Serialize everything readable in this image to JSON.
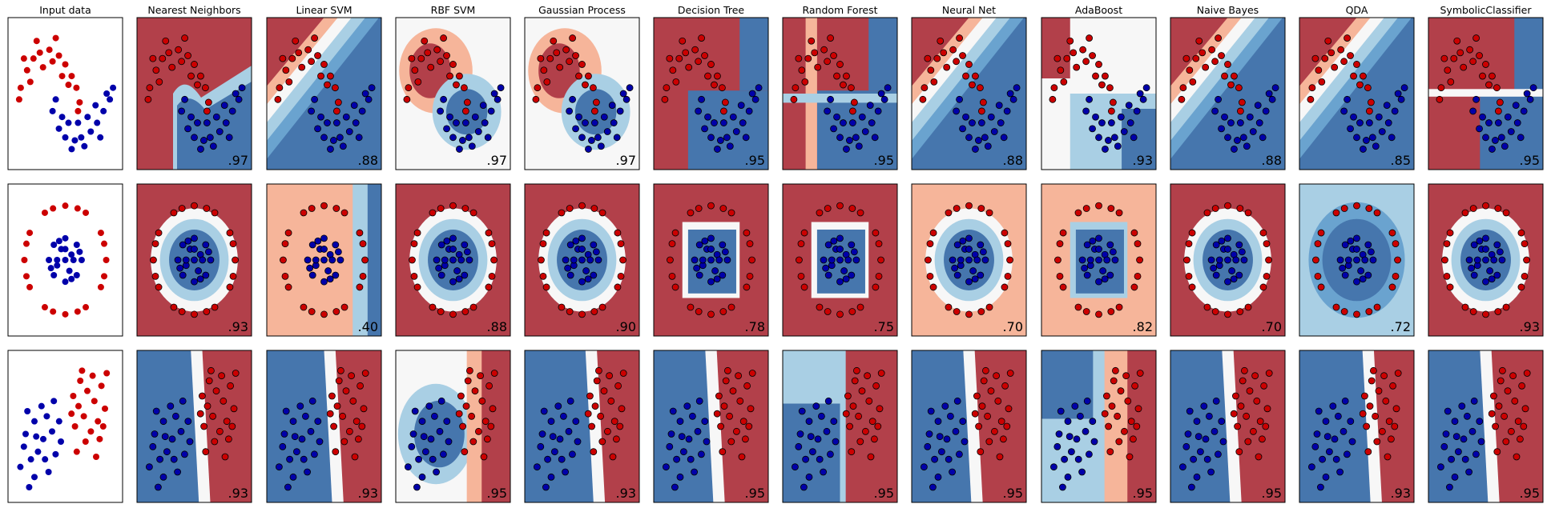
{
  "figure": {
    "columns": [
      "Input data",
      "Nearest Neighbors",
      "Linear SVM",
      "RBF SVM",
      "Gaussian Process",
      "Decision Tree",
      "Random Forest",
      "Neural Net",
      "AdaBoost",
      "Naive Bayes",
      "QDA",
      "SymbolicClassifier"
    ],
    "colors": {
      "class_0": "#cc0000",
      "class_1": "#0000aa",
      "region_red": "#b2404a",
      "region_blue": "#4676ad",
      "light_red": "#f6b59a",
      "light_blue": "#a9cfe4",
      "neutral": "#f7f7f7"
    }
  },
  "chart_data": {
    "type": "scatter",
    "description_rows": [
      "moons",
      "circles",
      "linearly separable"
    ],
    "rows": [
      {
        "dataset": "moons",
        "scores": [
          null,
          ".97",
          ".88",
          ".97",
          ".97",
          ".95",
          ".95",
          ".88",
          ".93",
          ".88",
          ".85",
          ".95"
        ],
        "class_0_points": [
          [
            -0.9,
            0.4
          ],
          [
            -0.7,
            0.7
          ],
          [
            -0.5,
            0.9
          ],
          [
            -0.3,
            1.0
          ],
          [
            0.0,
            1.05
          ],
          [
            0.3,
            0.95
          ],
          [
            0.5,
            0.8
          ],
          [
            0.7,
            0.6
          ],
          [
            0.85,
            0.4
          ],
          [
            0.95,
            0.15
          ],
          [
            -0.95,
            0.2
          ],
          [
            -0.6,
            0.5
          ],
          [
            -0.2,
            0.75
          ],
          [
            0.1,
            0.85
          ],
          [
            0.4,
            0.6
          ],
          [
            0.6,
            0.45
          ],
          [
            -0.4,
            1.2
          ],
          [
            0.2,
            1.25
          ],
          [
            0.9,
            0.0
          ],
          [
            -0.8,
            0.9
          ]
        ],
        "class_1_points": [
          [
            0.1,
            0.0
          ],
          [
            0.3,
            -0.3
          ],
          [
            0.5,
            -0.45
          ],
          [
            0.8,
            -0.5
          ],
          [
            1.0,
            -0.45
          ],
          [
            1.3,
            -0.35
          ],
          [
            1.5,
            -0.2
          ],
          [
            1.7,
            0.0
          ],
          [
            1.9,
            0.2
          ],
          [
            0.2,
            0.2
          ],
          [
            0.6,
            -0.2
          ],
          [
            0.9,
            -0.2
          ],
          [
            1.2,
            -0.1
          ],
          [
            1.45,
            0.1
          ],
          [
            1.8,
            0.3
          ],
          [
            0.4,
            -0.1
          ],
          [
            1.1,
            -0.6
          ],
          [
            0.7,
            -0.65
          ],
          [
            1.6,
            -0.45
          ],
          [
            2.0,
            0.4
          ]
        ],
        "xlim": [
          -1.3,
          2.3
        ],
        "ylim": [
          -1.0,
          1.6
        ]
      },
      {
        "dataset": "circles",
        "scores": [
          null,
          ".93",
          ".40",
          ".88",
          ".90",
          ".78",
          ".75",
          ".70",
          ".82",
          ".70",
          ".72",
          ".93"
        ],
        "class_0_points": [
          [
            1.0,
            0.0
          ],
          [
            0.87,
            0.5
          ],
          [
            0.5,
            0.87
          ],
          [
            0.0,
            1.0
          ],
          [
            -0.5,
            0.87
          ],
          [
            -0.87,
            0.5
          ],
          [
            -1.0,
            0.0
          ],
          [
            -0.87,
            -0.5
          ],
          [
            -0.5,
            -0.87
          ],
          [
            0.0,
            -1.0
          ],
          [
            0.5,
            -0.87
          ],
          [
            0.87,
            -0.5
          ],
          [
            0.95,
            0.3
          ],
          [
            0.3,
            0.95
          ],
          [
            -0.3,
            0.95
          ],
          [
            -0.95,
            0.3
          ],
          [
            -0.95,
            -0.3
          ],
          [
            -0.3,
            -0.95
          ],
          [
            0.3,
            -0.95
          ],
          [
            0.95,
            -0.3
          ]
        ],
        "class_1_points": [
          [
            0.4,
            0.0
          ],
          [
            0.28,
            0.28
          ],
          [
            0.0,
            0.4
          ],
          [
            -0.28,
            0.28
          ],
          [
            -0.4,
            0.0
          ],
          [
            -0.28,
            -0.28
          ],
          [
            0.0,
            -0.4
          ],
          [
            0.28,
            -0.28
          ],
          [
            0.15,
            0.1
          ],
          [
            -0.1,
            0.2
          ],
          [
            -0.2,
            -0.1
          ],
          [
            0.1,
            -0.2
          ],
          [
            0.35,
            0.15
          ],
          [
            -0.35,
            -0.15
          ],
          [
            0.15,
            -0.35
          ],
          [
            -0.15,
            0.35
          ],
          [
            0.0,
            0.0
          ],
          [
            0.2,
            0.0
          ],
          [
            -0.2,
            0.0
          ],
          [
            0.0,
            0.2
          ]
        ],
        "xlim": [
          -1.4,
          1.4
        ],
        "ylim": [
          -1.4,
          1.4
        ]
      },
      {
        "dataset": "linearly separable",
        "scores": [
          null,
          ".93",
          ".93",
          ".95",
          ".93",
          ".95",
          ".95",
          ".95",
          ".95",
          ".95",
          ".93",
          ".95"
        ],
        "class_0_points": [
          [
            1.2,
            2.0
          ],
          [
            1.5,
            1.6
          ],
          [
            2.0,
            2.2
          ],
          [
            2.4,
            1.8
          ],
          [
            1.8,
            1.2
          ],
          [
            2.6,
            1.0
          ],
          [
            1.3,
            0.8
          ],
          [
            2.2,
            0.6
          ],
          [
            2.8,
            2.4
          ],
          [
            1.6,
            2.6
          ],
          [
            3.0,
            1.5
          ],
          [
            2.3,
            2.8
          ],
          [
            1.1,
            1.3
          ],
          [
            2.7,
            0.3
          ],
          [
            1.9,
            0.2
          ],
          [
            3.1,
            2.9
          ],
          [
            1.4,
            -0.2
          ],
          [
            2.5,
            -0.4
          ],
          [
            1.7,
            3.0
          ],
          [
            2.9,
            0.8
          ]
        ],
        "class_1_points": [
          [
            -1.5,
            0.5
          ],
          [
            -1.0,
            1.0
          ],
          [
            -0.5,
            0.3
          ],
          [
            -1.2,
            -0.5
          ],
          [
            -0.3,
            1.2
          ],
          [
            -0.8,
            -0.2
          ],
          [
            0.0,
            0.6
          ],
          [
            -1.8,
            -0.8
          ],
          [
            -0.6,
            1.6
          ],
          [
            0.2,
            -0.3
          ],
          [
            -1.4,
            1.4
          ],
          [
            -0.2,
            -1.0
          ],
          [
            -1.0,
            -1.2
          ],
          [
            0.4,
            1.0
          ],
          [
            -1.6,
            0.0
          ],
          [
            -0.4,
            -0.5
          ],
          [
            0.1,
            1.8
          ],
          [
            -0.9,
            0.4
          ],
          [
            0.5,
            0.2
          ],
          [
            -1.3,
            -1.6
          ]
        ],
        "xlim": [
          -2.5,
          4.0
        ],
        "ylim": [
          -2.2,
          3.8
        ]
      }
    ]
  }
}
